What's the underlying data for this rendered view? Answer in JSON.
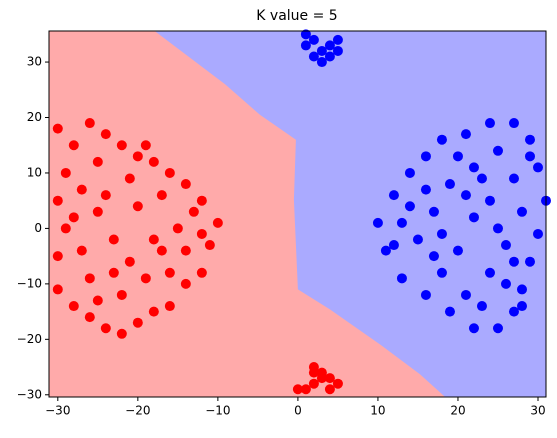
{
  "chart_data": {
    "type": "scatter",
    "title": "K value = 5",
    "xlim": [
      -31.1,
      31
    ],
    "ylim": [
      -30.4,
      35.6
    ],
    "xticks": [
      {
        "value": -30,
        "label": "−30"
      },
      {
        "value": -20,
        "label": "−20"
      },
      {
        "value": -10,
        "label": "−10"
      },
      0,
      10,
      20,
      30
    ],
    "yticks": [
      {
        "value": -30,
        "label": "−30"
      },
      {
        "value": -20,
        "label": "−20"
      },
      {
        "value": -10,
        "label": "−10"
      },
      0,
      10,
      20,
      30
    ],
    "region_colors": [
      "#ffaaaa",
      "#aaaaff"
    ],
    "boundary": {
      "x": [
        -17.9,
        -9.1,
        -4.75,
        -0.25,
        -0.5,
        0,
        4,
        10.25,
        15.25,
        18.4
      ],
      "y": [
        35.6,
        26,
        20.5,
        16,
        5.2,
        -11,
        -14.6,
        -20.9,
        -26.3,
        -30.4
      ]
    },
    "series": [
      {
        "color": "#ff0000",
        "x": [
          -30,
          -28,
          -26,
          -24,
          -22,
          -20,
          -18,
          -16,
          -14,
          -12,
          -10,
          -11,
          -12,
          -14,
          -16,
          -18,
          -20,
          -22,
          -24,
          -26,
          -28,
          -30,
          -30,
          -29,
          -30,
          -29,
          -27,
          -25,
          -23,
          -21,
          -19,
          -17,
          -15,
          -13,
          -17,
          -21,
          -25,
          -27,
          -26,
          -22,
          -18,
          -20,
          -24,
          -16,
          -14,
          -28,
          -23,
          -12,
          -19,
          -25,
          2,
          3,
          1,
          2,
          4,
          5,
          3,
          0,
          2,
          4
        ],
        "values": [
          18,
          15,
          19,
          17,
          15,
          13,
          12,
          10,
          8,
          5,
          1,
          -3,
          -8,
          -10,
          -14,
          -15,
          -17,
          -19,
          -18,
          -16,
          -14,
          -11,
          -5,
          0,
          5,
          10,
          7,
          3,
          -2,
          -6,
          -9,
          -4,
          0,
          3,
          6,
          9,
          12,
          -4,
          -9,
          -12,
          -2,
          4,
          6,
          -8,
          -4,
          2,
          -8,
          -1,
          15,
          -13,
          -25,
          -27,
          -29,
          -28,
          -29,
          -28,
          -26,
          -29,
          -26,
          -27
        ]
      },
      {
        "color": "#0000ff",
        "x": [
          10,
          12,
          14,
          16,
          18,
          21,
          24,
          27,
          29,
          30,
          31,
          30,
          29,
          28,
          27,
          25,
          22,
          19,
          16,
          13,
          11,
          15,
          17,
          19,
          22,
          25,
          27,
          28,
          26,
          24,
          21,
          18,
          20,
          22,
          24,
          14,
          12,
          16,
          20,
          26,
          23,
          29,
          17,
          25,
          21,
          13,
          18,
          27,
          23,
          28,
          1,
          2,
          3,
          4,
          5,
          2,
          3,
          4,
          1,
          5
        ],
        "values": [
          1,
          6,
          10,
          13,
          16,
          17,
          19,
          19,
          16,
          11,
          5,
          -1,
          -6,
          -11,
          -15,
          -18,
          -18,
          -15,
          -12,
          -9,
          -4,
          -2,
          3,
          8,
          11,
          14,
          9,
          3,
          -3,
          -8,
          -12,
          -8,
          -4,
          2,
          5,
          4,
          -3,
          7,
          13,
          -10,
          -14,
          13,
          -5,
          0,
          6,
          1,
          -1,
          -6,
          9,
          -14,
          35,
          34,
          32,
          33,
          34,
          31,
          30,
          31,
          33,
          32
        ]
      }
    ]
  }
}
